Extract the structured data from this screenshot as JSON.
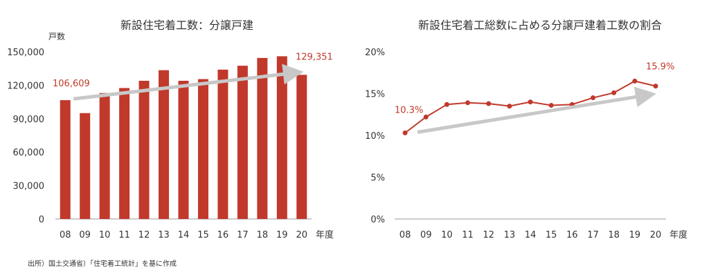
{
  "colors": {
    "accent": "#c0392b",
    "arrow": "#c8c8c8",
    "axis": "#999999",
    "text": "#333333"
  },
  "source_note": "出所）国土交通省）「住宅着工統計」を基に作成",
  "chart_data": [
    {
      "type": "bar",
      "title": "新設住宅着工数：分譲戸建",
      "ylabel": "戸数",
      "xlabel": "年度",
      "categories": [
        "08",
        "09",
        "10",
        "11",
        "12",
        "13",
        "14",
        "15",
        "16",
        "17",
        "18",
        "19",
        "20"
      ],
      "values": [
        106609,
        95000,
        113000,
        117500,
        124000,
        133500,
        124000,
        125500,
        134000,
        137500,
        144500,
        146000,
        129351
      ],
      "ylim": [
        0,
        150000
      ],
      "yticks": [
        "0",
        "30,000",
        "60,000",
        "90,000",
        "120,000",
        "150,000"
      ],
      "annotations": [
        "106,609",
        "129,351"
      ],
      "grid": false,
      "trend_arrow": true
    },
    {
      "type": "line",
      "title": "新設住宅着工総数に占める分譲戸建着工数の割合",
      "xlabel": "年度",
      "categories": [
        "08",
        "09",
        "10",
        "11",
        "12",
        "13",
        "14",
        "15",
        "16",
        "17",
        "18",
        "19",
        "20"
      ],
      "values": [
        10.3,
        12.2,
        13.7,
        13.9,
        13.8,
        13.5,
        14.0,
        13.6,
        13.7,
        14.5,
        15.1,
        16.5,
        15.9
      ],
      "ylim": [
        0,
        20
      ],
      "yticks": [
        "0%",
        "5%",
        "10%",
        "15%",
        "20%"
      ],
      "annotations": [
        "10.3%",
        "15.9%"
      ],
      "grid": false,
      "trend_arrow": true
    }
  ]
}
